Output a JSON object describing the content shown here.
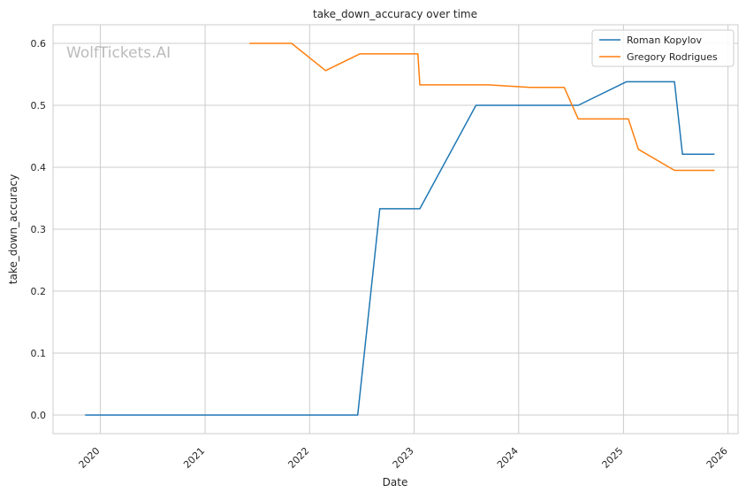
{
  "chart_data": {
    "type": "line",
    "title": "take_down_accuracy over time",
    "xlabel": "Date",
    "ylabel": "take_down_accuracy",
    "watermark": "WolfTickets.AI",
    "x_ticks": [
      "2020",
      "2021",
      "2022",
      "2023",
      "2024",
      "2025",
      "2026"
    ],
    "y_ticks": [
      "0.0",
      "0.1",
      "0.2",
      "0.3",
      "0.4",
      "0.5",
      "0.6"
    ],
    "xlim": [
      "2019-07-20",
      "2026-02-05"
    ],
    "ylim": [
      -0.03,
      0.63
    ],
    "grid": true,
    "legend_position": "top-right",
    "series": [
      {
        "name": "Roman Kopylov",
        "color": "#1f77b4",
        "points": [
          {
            "x": "2019-11-09",
            "y": 0.0
          },
          {
            "x": "2022-06-18",
            "y": 0.0
          },
          {
            "x": "2022-09-03",
            "y": 0.333
          },
          {
            "x": "2023-01-21",
            "y": 0.333
          },
          {
            "x": "2023-08-05",
            "y": 0.5
          },
          {
            "x": "2024-07-27",
            "y": 0.5
          },
          {
            "x": "2025-01-11",
            "y": 0.538
          },
          {
            "x": "2025-06-28",
            "y": 0.538
          },
          {
            "x": "2025-07-26",
            "y": 0.421
          },
          {
            "x": "2025-11-15",
            "y": 0.421
          }
        ]
      },
      {
        "name": "Gregory Rodrigues",
        "color": "#ff7f0e",
        "points": [
          {
            "x": "2021-06-05",
            "y": 0.6
          },
          {
            "x": "2021-10-30",
            "y": 0.6
          },
          {
            "x": "2022-02-26",
            "y": 0.556
          },
          {
            "x": "2022-06-25",
            "y": 0.583
          },
          {
            "x": "2023-01-14",
            "y": 0.583
          },
          {
            "x": "2023-01-21",
            "y": 0.533
          },
          {
            "x": "2023-09-16",
            "y": 0.533
          },
          {
            "x": "2024-02-10",
            "y": 0.529
          },
          {
            "x": "2024-06-08",
            "y": 0.529
          },
          {
            "x": "2024-07-27",
            "y": 0.478
          },
          {
            "x": "2025-01-18",
            "y": 0.478
          },
          {
            "x": "2025-02-22",
            "y": 0.429
          },
          {
            "x": "2025-06-28",
            "y": 0.395
          },
          {
            "x": "2025-11-15",
            "y": 0.395
          }
        ]
      }
    ]
  }
}
